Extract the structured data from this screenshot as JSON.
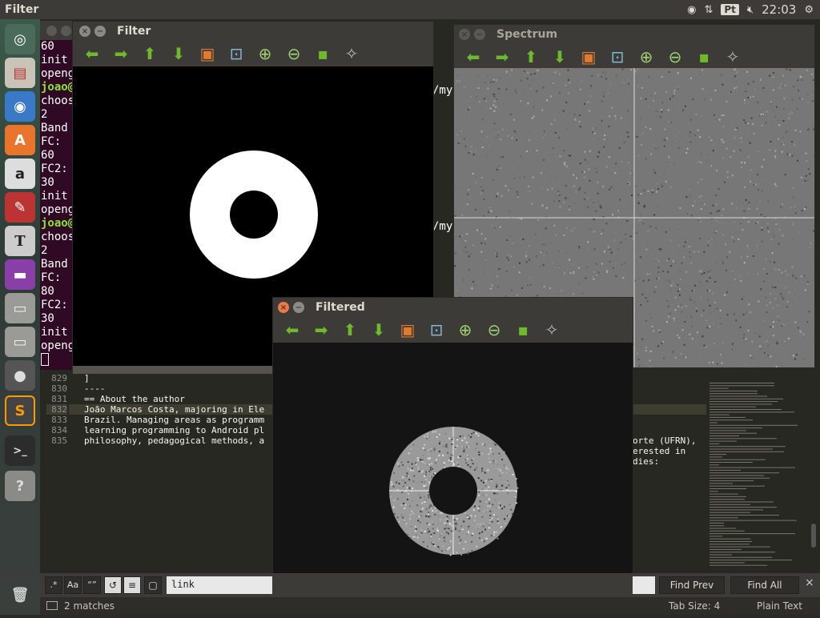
{
  "topbar": {
    "app_title": "Filter",
    "keyboard": "Pt",
    "clock": "22:03"
  },
  "terminal": {
    "lines": [
      {
        "t": "60",
        "g": false
      },
      {
        "t": "init",
        "g": false
      },
      {
        "t": "openg",
        "g": false
      },
      {
        "t": "joao@",
        "g": true
      },
      {
        "t": "choos",
        "g": false
      },
      {
        "t": "2",
        "g": false
      },
      {
        "t": "Band",
        "g": false
      },
      {
        "t": "FC:",
        "g": false
      },
      {
        "t": "60",
        "g": false
      },
      {
        "t": "FC2:",
        "g": false
      },
      {
        "t": "30",
        "g": false
      },
      {
        "t": "init",
        "g": false
      },
      {
        "t": "openg",
        "g": false
      },
      {
        "t": "joao@",
        "g": true
      },
      {
        "t": "choos",
        "g": false
      },
      {
        "t": "2",
        "g": false
      },
      {
        "t": "Band",
        "g": false
      },
      {
        "t": "FC:",
        "g": false
      },
      {
        "t": "80",
        "g": false
      },
      {
        "t": "FC2:",
        "g": false
      },
      {
        "t": "30",
        "g": false
      },
      {
        "t": "init",
        "g": false
      },
      {
        "t": "openg",
        "g": false
      }
    ],
    "path_fragment_1": "/my",
    "path_fragment_2": "/my"
  },
  "editor": {
    "line_numbers": [
      "829",
      "830",
      "831",
      "832",
      "833",
      "834",
      "835"
    ],
    "lines": [
      "]",
      "----",
      "",
      "",
      "== About the author",
      "",
      "João Marcos Costa, majoring in Ele"
    ],
    "lines_cont": [
      "Brazil. Managing areas as programm",
      "learning programming to Android pl",
      "philosophy, pedagogical methods, a"
    ],
    "right_fragments": [
      "orte (UFRN),",
      "erested in",
      "dies:"
    ]
  },
  "windows": {
    "filter": {
      "title": "Filter"
    },
    "spectrum": {
      "title": "Spectrum"
    },
    "filtered": {
      "title": "Filtered"
    }
  },
  "toolbar_icons": [
    "arrow-left-icon",
    "arrow-right-icon",
    "arrow-up-icon",
    "arrow-down-icon",
    "image-icon",
    "zoom-fit-icon",
    "zoom-in-icon",
    "zoom-out-icon",
    "save-icon",
    "clear-icon"
  ],
  "findbar": {
    "query": "link",
    "find_prev": "Find Prev",
    "find_all": "Find All"
  },
  "statusbar": {
    "matches": "2 matches",
    "tab_size": "Tab Size: 4",
    "syntax": "Plain Text"
  },
  "launcher": [
    "ubuntu-icon",
    "files-icon",
    "chromium-icon",
    "software-center-icon",
    "amazon-icon",
    "settings-icon",
    "texmaker-icon",
    "app-icon",
    "drive-icon",
    "drive-icon",
    "app-icon",
    "sublime-icon",
    "terminal-icon",
    "help-icon",
    "trash-icon"
  ]
}
